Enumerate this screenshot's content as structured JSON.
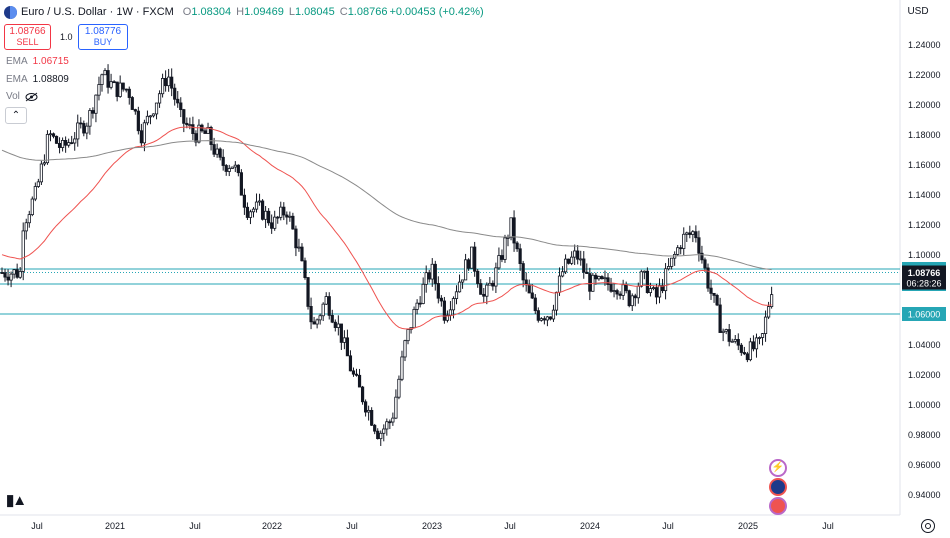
{
  "header": {
    "symbol_title": "Euro / U.S. Dollar · 1W · FXCM",
    "ohlc": [
      {
        "key": "O",
        "value": "1.08304"
      },
      {
        "key": "H",
        "value": "1.09469"
      },
      {
        "key": "L",
        "value": "1.08045"
      },
      {
        "key": "C",
        "value": "1.08766"
      }
    ],
    "change": "+0.00453 (+0.42%)"
  },
  "trade": {
    "sell_price": "1.08766",
    "sell_label": "SELL",
    "spread": "1.0",
    "buy_price": "1.08776",
    "buy_label": "BUY"
  },
  "indicators": [
    {
      "label": "EMA",
      "value": "1.06715"
    },
    {
      "label": "EMA",
      "value": "1.08809"
    },
    {
      "label": "Vol",
      "value": ""
    }
  ],
  "currency": "USD",
  "colors": {
    "up": "#089981",
    "down": "#f23645",
    "candle": "#131722",
    "ema_short": "#ef5350",
    "ema_long": "#8a8a8a",
    "hline": "#26a6b5",
    "price_label_bg": "#131722",
    "level_label_bg": "#26a6b5",
    "events": "#ba68c8"
  },
  "icons": [
    "collapse-chevron-icon",
    "tradingview-logo-icon",
    "settings-gear-icon",
    "lightning-event-icon",
    "eu-flag-event-icon",
    "us-flag-event-icon",
    "eye-hidden-icon"
  ],
  "chart_data": {
    "type": "candlestick",
    "timeframe": "1W",
    "y_axis": {
      "ticks": [
        "1.24000",
        "1.22000",
        "1.20000",
        "1.18000",
        "1.16000",
        "1.14000",
        "1.12000",
        "1.10000",
        "1.08000",
        "1.06000",
        "1.04000",
        "1.02000",
        "1.00000",
        "0.98000",
        "0.96000",
        "0.94000"
      ],
      "range": [
        0.93,
        1.255
      ]
    },
    "x_axis": {
      "ticks": [
        "Jul",
        "2021",
        "Jul",
        "2022",
        "Jul",
        "2023",
        "Jul",
        "2024",
        "Jul",
        "2025",
        "Jul"
      ]
    },
    "levels": [
      {
        "label": "1.09000",
        "value": 1.09
      },
      {
        "label": "1.08000",
        "value": 1.08
      },
      {
        "label": "1.06000",
        "value": 1.06
      }
    ],
    "current_price": {
      "label": "1.08766",
      "value": 1.08766,
      "countdown": "06:28:26"
    },
    "series": [
      {
        "name": "EUR/USD",
        "kind": "candles"
      },
      {
        "name": "EMA",
        "kind": "line",
        "last": 1.06715
      },
      {
        "name": "EMA",
        "kind": "line",
        "last": 1.08809
      }
    ],
    "close_path": [
      [
        "2020-06",
        1.12
      ],
      [
        "2020-07",
        1.14
      ],
      [
        "2020-08",
        1.18
      ],
      [
        "2020-09",
        1.17
      ],
      [
        "2020-10",
        1.18
      ],
      [
        "2020-11",
        1.19
      ],
      [
        "2020-12",
        1.22
      ],
      [
        "2021-01",
        1.21
      ],
      [
        "2021-02",
        1.21
      ],
      [
        "2021-03",
        1.18
      ],
      [
        "2021-04",
        1.2
      ],
      [
        "2021-05",
        1.22
      ],
      [
        "2021-06",
        1.19
      ],
      [
        "2021-07",
        1.18
      ],
      [
        "2021-08",
        1.18
      ],
      [
        "2021-09",
        1.16
      ],
      [
        "2021-10",
        1.16
      ],
      [
        "2021-11",
        1.13
      ],
      [
        "2021-12",
        1.13
      ],
      [
        "2022-01",
        1.12
      ],
      [
        "2022-02",
        1.13
      ],
      [
        "2022-03",
        1.1
      ],
      [
        "2022-04",
        1.05
      ],
      [
        "2022-05",
        1.07
      ],
      [
        "2022-06",
        1.05
      ],
      [
        "2022-07",
        1.02
      ],
      [
        "2022-08",
        1.0
      ],
      [
        "2022-09",
        0.98
      ],
      [
        "2022-10",
        0.99
      ],
      [
        "2022-11",
        1.04
      ],
      [
        "2022-12",
        1.07
      ],
      [
        "2023-01",
        1.09
      ],
      [
        "2023-02",
        1.06
      ],
      [
        "2023-03",
        1.08
      ],
      [
        "2023-04",
        1.1
      ],
      [
        "2023-05",
        1.07
      ],
      [
        "2023-06",
        1.09
      ],
      [
        "2023-07",
        1.12
      ],
      [
        "2023-08",
        1.08
      ],
      [
        "2023-09",
        1.06
      ],
      [
        "2023-10",
        1.06
      ],
      [
        "2023-11",
        1.09
      ],
      [
        "2023-12",
        1.1
      ],
      [
        "2024-01",
        1.08
      ],
      [
        "2024-02",
        1.08
      ],
      [
        "2024-03",
        1.08
      ],
      [
        "2024-04",
        1.07
      ],
      [
        "2024-05",
        1.085
      ],
      [
        "2024-06",
        1.07
      ],
      [
        "2024-07",
        1.09
      ],
      [
        "2024-08",
        1.11
      ],
      [
        "2024-09",
        1.115
      ],
      [
        "2024-10",
        1.08
      ],
      [
        "2024-11",
        1.05
      ],
      [
        "2024-12",
        1.04
      ],
      [
        "2025-01",
        1.035
      ],
      [
        "2025-02",
        1.04
      ],
      [
        "2025-03",
        1.08766
      ]
    ]
  }
}
